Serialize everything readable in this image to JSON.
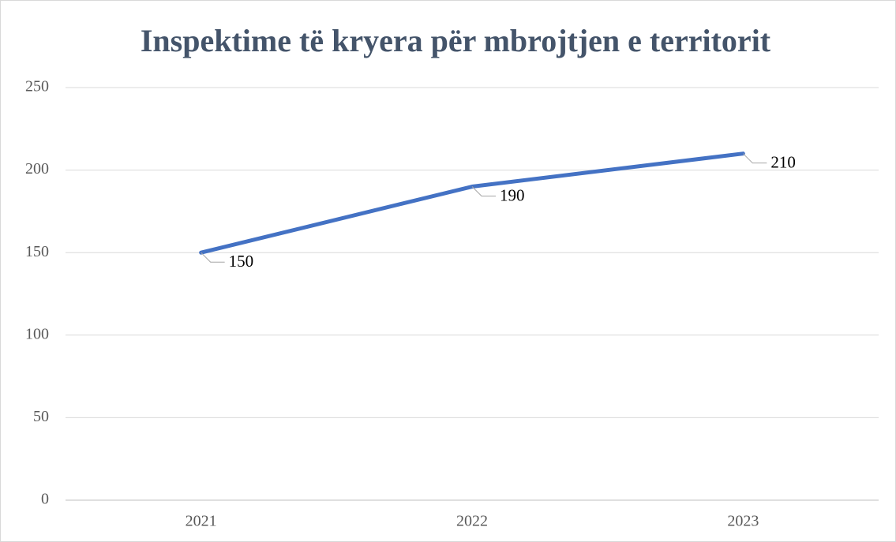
{
  "chart_data": {
    "type": "line",
    "title": "Inspektime të kryera për mbrojtjen e territorit",
    "categories": [
      "2021",
      "2022",
      "2023"
    ],
    "values": [
      150,
      190,
      210
    ],
    "color": "#4472c4",
    "ylim": [
      0,
      250
    ],
    "yticks": [
      0,
      50,
      100,
      150,
      200,
      250
    ],
    "grid": true
  }
}
